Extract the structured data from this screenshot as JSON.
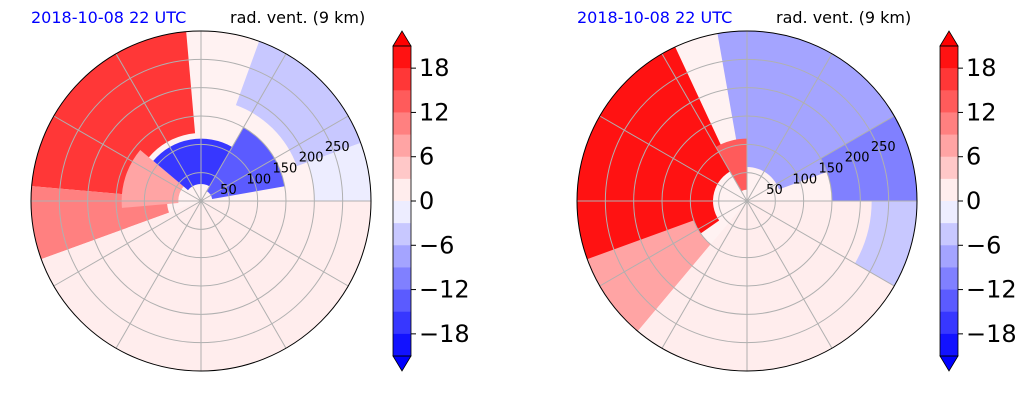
{
  "chart_data": [
    {
      "type": "heatmap",
      "projection": "polar",
      "title_left": "2018-10-08 22 UTC",
      "title_right": "rad. vent. (9 km)",
      "radial_ticks": [
        "50",
        "100",
        "150",
        "200",
        "250"
      ],
      "radial_tick_values": [
        50,
        100,
        150,
        200,
        250
      ],
      "r_max": 300,
      "grid": true,
      "colorbar": {
        "ticks": [
          "18",
          "12",
          "6",
          "0",
          "−6",
          "−12",
          "−18"
        ],
        "tick_values": [
          18,
          12,
          6,
          0,
          -6,
          -12,
          -18
        ],
        "range": [
          -21,
          21
        ],
        "extend": "both",
        "cmap": "bwr"
      },
      "regions": [
        {
          "az0": 95,
          "az1": 175,
          "r0": 120,
          "r1": 300,
          "value": 17
        },
        {
          "az0": 175,
          "az1": 200,
          "r0": 60,
          "r1": 300,
          "value": 9
        },
        {
          "az0": 140,
          "az1": 185,
          "r0": 40,
          "r1": 140,
          "value": 8
        },
        {
          "az0": 200,
          "az1": 300,
          "r0": 0,
          "r1": 300,
          "value": 1
        },
        {
          "az0": 300,
          "az1": 360,
          "r0": 0,
          "r1": 300,
          "value": 0
        },
        {
          "az0": 10,
          "az1": 60,
          "r0": 20,
          "r1": 150,
          "value": -15
        },
        {
          "az0": 60,
          "az1": 140,
          "r0": 30,
          "r1": 110,
          "value": -16
        },
        {
          "az0": 20,
          "az1": 70,
          "r0": 180,
          "r1": 300,
          "value": -6
        },
        {
          "az0": 0,
          "az1": 20,
          "r0": 200,
          "r1": 300,
          "value": -3
        }
      ]
    },
    {
      "type": "heatmap",
      "projection": "polar",
      "title_left": "2018-10-08 22 UTC",
      "title_right": "rad. vent. (9 km)",
      "radial_ticks": [
        "50",
        "100",
        "150",
        "200",
        "250"
      ],
      "radial_tick_values": [
        50,
        100,
        150,
        200,
        250
      ],
      "r_max": 300,
      "grid": true,
      "colorbar": {
        "ticks": [
          "18",
          "12",
          "6",
          "0",
          "−6",
          "−12",
          "−18"
        ],
        "tick_values": [
          18,
          12,
          6,
          0,
          -6,
          -12,
          -18
        ],
        "range": [
          -21,
          21
        ],
        "extend": "both",
        "cmap": "bwr"
      },
      "regions": [
        {
          "az0": 115,
          "az1": 215,
          "r0": 60,
          "r1": 300,
          "value": 20
        },
        {
          "az0": 200,
          "az1": 230,
          "r0": 100,
          "r1": 300,
          "value": 6
        },
        {
          "az0": 230,
          "az1": 360,
          "r0": 0,
          "r1": 300,
          "value": 0
        },
        {
          "az0": 20,
          "az1": 100,
          "r0": 60,
          "r1": 300,
          "value": -9
        },
        {
          "az0": 0,
          "az1": 30,
          "r0": 150,
          "r1": 300,
          "value": -12
        },
        {
          "az0": 330,
          "az1": 360,
          "r0": 220,
          "r1": 300,
          "value": -6
        },
        {
          "az0": 90,
          "az1": 120,
          "r0": 20,
          "r1": 110,
          "value": 14
        }
      ]
    }
  ]
}
